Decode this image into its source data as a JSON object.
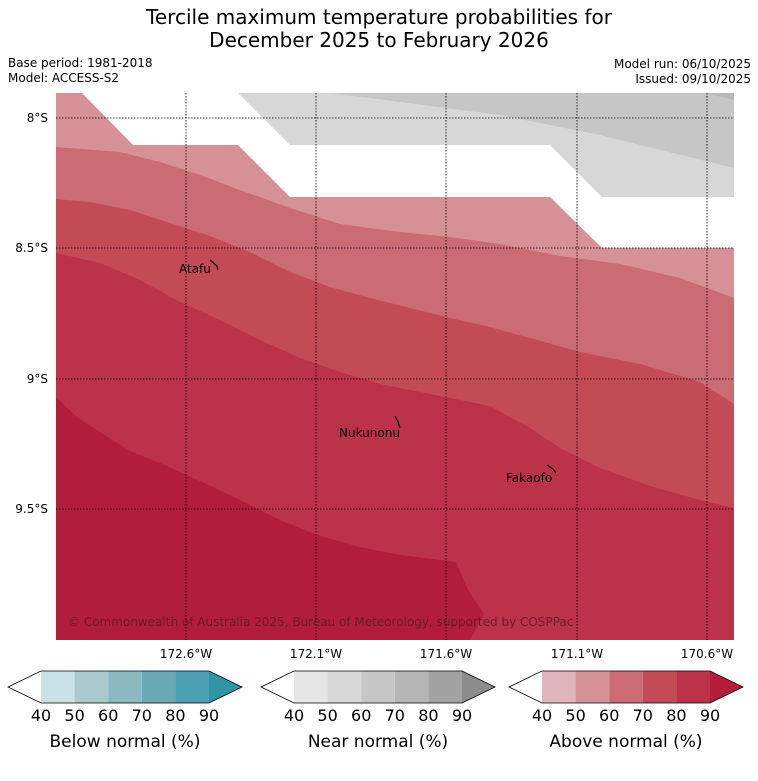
{
  "title": {
    "line1": "Tercile maximum temperature probabilities for",
    "line2": "December 2025 to February 2026"
  },
  "meta": {
    "base_period": "Base period: 1981-2018",
    "model": "Model: ACCESS-S2",
    "model_run": "Model run: 06/10/2025",
    "issued": "Issued: 09/10/2025"
  },
  "map": {
    "lat_labels": [
      "8°S",
      "8.5°S",
      "9°S",
      "9.5°S"
    ],
    "lon_labels": [
      "172.6°W",
      "172.1°W",
      "171.6°W",
      "171.1°W",
      "170.6°W"
    ],
    "places": [
      {
        "name": "Atafu"
      },
      {
        "name": "Nukunonu"
      },
      {
        "name": "Fakaofo"
      }
    ],
    "copyright": "© Commonwealth of Australia 2025, Bureau of Meteorology, supported by COSPPac",
    "colors": {
      "above_40": "#e0b4bd",
      "above_50": "#d69197",
      "above_60": "#cb6b74",
      "above_70": "#c34b56",
      "above_80": "#bb3249",
      "above_90": "#b21e3a",
      "near_40": "#d7d7d7",
      "near_50": "#c6c6c6",
      "near_60": "#b9b9b9"
    }
  },
  "colorbars": [
    {
      "label": "Below normal (%)",
      "ticks": [
        "40",
        "50",
        "60",
        "70",
        "80",
        "90"
      ],
      "colors": [
        "#ffffff",
        "#c9e2e8",
        "#a9c9ce",
        "#8bb9c2",
        "#6aa9b6",
        "#4aa0b2",
        "#2f96a8"
      ]
    },
    {
      "label": "Near normal (%)",
      "ticks": [
        "40",
        "50",
        "60",
        "70",
        "80",
        "90"
      ],
      "colors": [
        "#ffffff",
        "#e6e6e6",
        "#d7d7d7",
        "#c6c6c6",
        "#b5b5b5",
        "#a3a3a3",
        "#8c8c8c"
      ]
    },
    {
      "label": "Above normal (%)",
      "ticks": [
        "40",
        "50",
        "60",
        "70",
        "80",
        "90"
      ],
      "colors": [
        "#ffffff",
        "#e0b4bd",
        "#d69197",
        "#cb6b74",
        "#c34b56",
        "#bb3249",
        "#b21e3a"
      ]
    }
  ]
}
